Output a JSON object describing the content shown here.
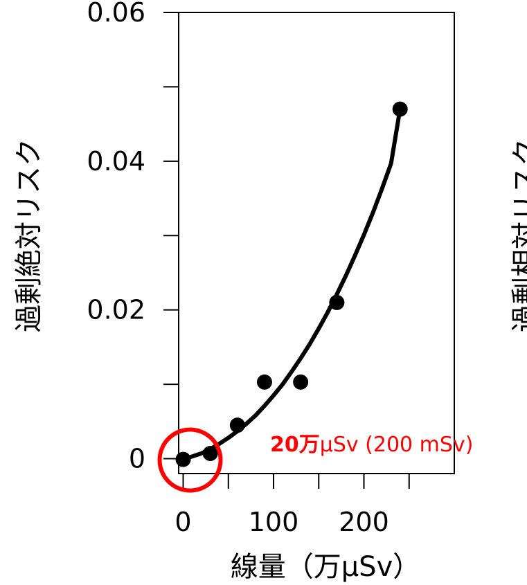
{
  "chart_data": {
    "type": "scatter",
    "points": [
      {
        "x": 0,
        "y": -0.0001
      },
      {
        "x": 30,
        "y": 0.0007
      },
      {
        "x": 60,
        "y": 0.0045
      },
      {
        "x": 90,
        "y": 0.0103
      },
      {
        "x": 130,
        "y": 0.0103
      },
      {
        "x": 170,
        "y": 0.021
      },
      {
        "x": 240,
        "y": 0.047
      }
    ],
    "fit_curve": {
      "x": [
        0,
        10,
        20,
        30,
        40,
        50,
        60,
        70,
        80,
        90,
        100,
        110,
        120,
        130,
        140,
        150,
        160,
        170,
        180,
        190,
        200,
        210,
        220,
        230,
        240
      ],
      "y": [
        -0.0001,
        0.0003,
        0.0007,
        0.0013,
        0.002,
        0.0028,
        0.0037,
        0.0047,
        0.0058,
        0.0071,
        0.0085,
        0.01,
        0.0117,
        0.0135,
        0.0154,
        0.0175,
        0.0197,
        0.0221,
        0.0246,
        0.0273,
        0.0301,
        0.0331,
        0.0363,
        0.0397,
        0.047
      ]
    },
    "xlim": [
      -5,
      300
    ],
    "ylim": [
      -0.002,
      0.06
    ],
    "x_ticks": [
      0,
      50,
      100,
      150,
      200,
      250
    ],
    "x_tick_labels": [
      "0",
      "",
      "100",
      "",
      "200",
      ""
    ],
    "y_ticks": [
      0,
      0.01,
      0.02,
      0.03,
      0.04,
      0.05,
      0.06
    ],
    "y_tick_labels": [
      "0",
      "",
      "0.02",
      "",
      "0.04",
      "",
      "0.06"
    ],
    "xlabel": "線量（万μSv）",
    "ylabel": "過剰絶対リスク",
    "second_ylabel_partial": "過剰相対リスク",
    "annotation": {
      "bold_text": "20万",
      "text": "μSv (200 mSv)",
      "highlight_x": 0,
      "highlight_y": 0
    },
    "grid": false,
    "colors": {
      "line": "#000000",
      "points": "#000000",
      "highlight": "#ff0000"
    }
  }
}
